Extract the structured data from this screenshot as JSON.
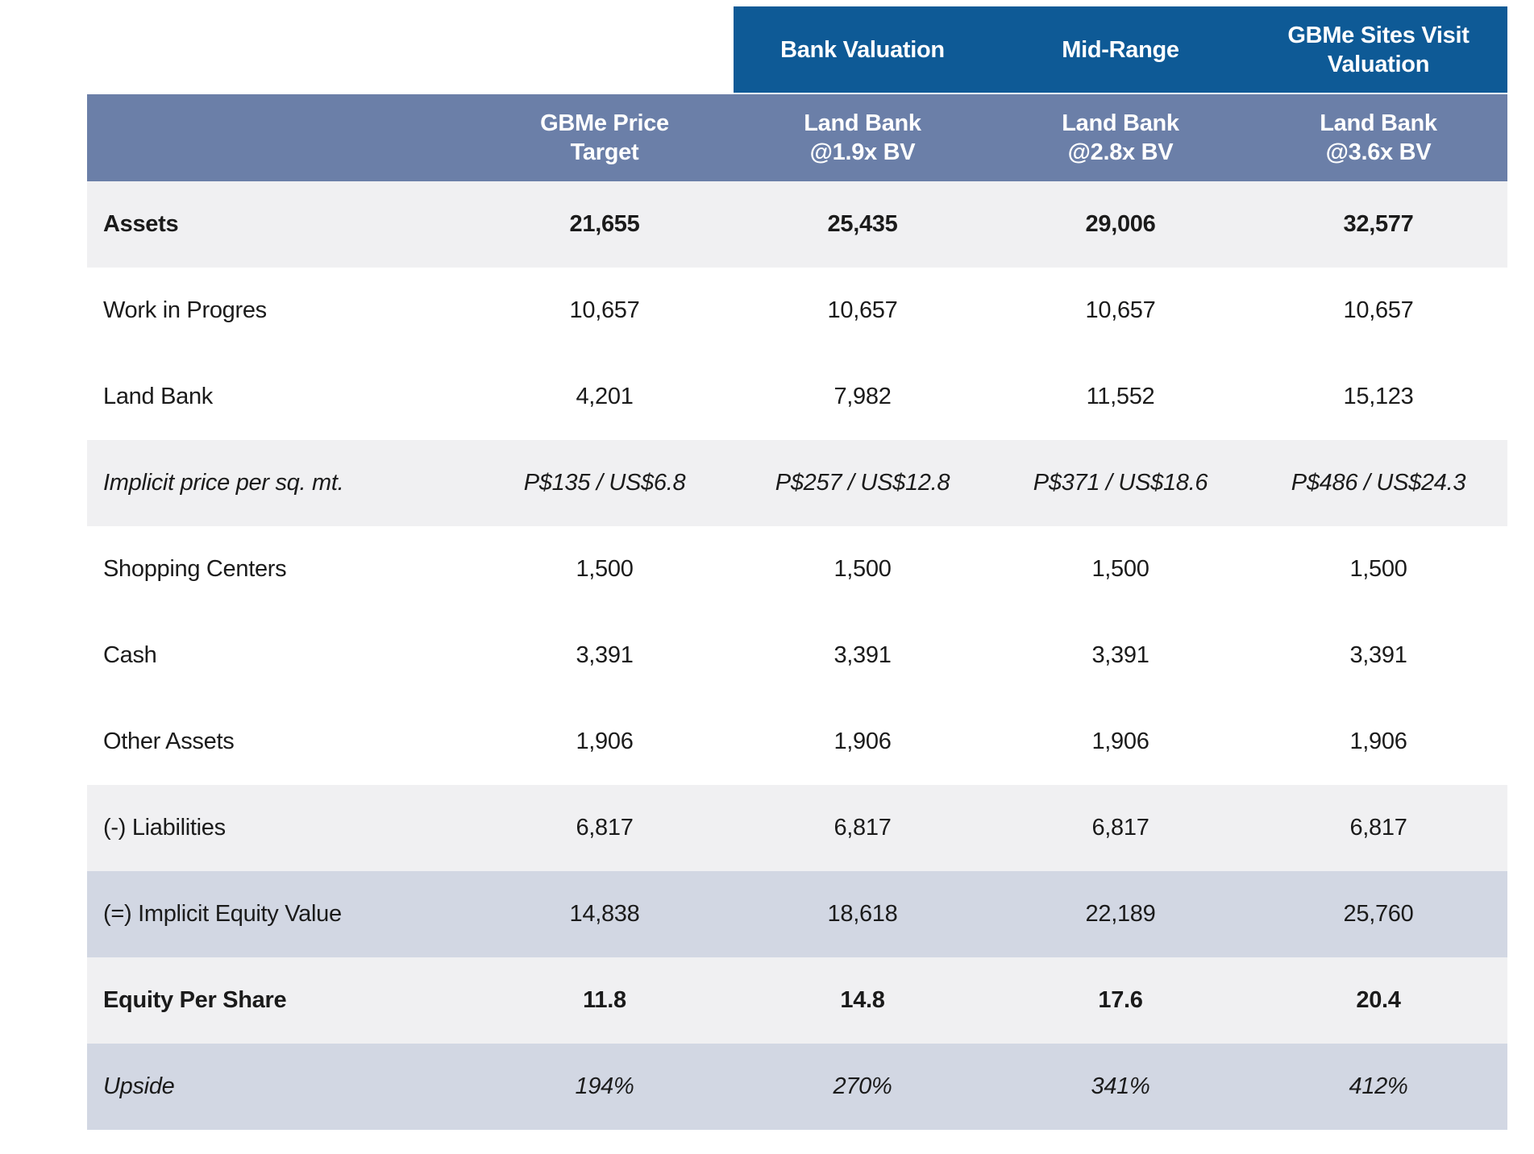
{
  "colors": {
    "header_dark_blue": "#0E5A96",
    "header_slate_blue": "#6B7FA8",
    "row_light_gray": "#F0F0F2",
    "row_blue_gray": "#D2D7E3",
    "header_text": "#FFFFFF",
    "body_text": "#1B1B1B"
  },
  "table": {
    "group_headers": [
      {
        "line1": "Bank Valuation",
        "line2": ""
      },
      {
        "line1": "Mid-Range",
        "line2": ""
      },
      {
        "line1": "GBMe Sites Visit",
        "line2": "Valuation"
      }
    ],
    "column_headers": [
      {
        "line1": "GBMe Price",
        "line2": "Target"
      },
      {
        "line1": "Land Bank",
        "line2": "@1.9x BV"
      },
      {
        "line1": "Land Bank",
        "line2": "@2.8x BV"
      },
      {
        "line1": "Land Bank",
        "line2": "@3.6x BV"
      }
    ],
    "rows": [
      {
        "label": "Assets",
        "values": [
          "21,655",
          "25,435",
          "29,006",
          "32,577"
        ]
      },
      {
        "label": "Work in Progres",
        "values": [
          "10,657",
          "10,657",
          "10,657",
          "10,657"
        ]
      },
      {
        "label": "Land Bank",
        "values": [
          "4,201",
          "7,982",
          "11,552",
          "15,123"
        ]
      },
      {
        "label": "Implicit price per sq. mt.",
        "values": [
          "P$135 / US$6.8",
          "P$257 / US$12.8",
          "P$371 / US$18.6",
          "P$486 / US$24.3"
        ]
      },
      {
        "label": "Shopping Centers",
        "values": [
          "1,500",
          "1,500",
          "1,500",
          "1,500"
        ]
      },
      {
        "label": "Cash",
        "values": [
          "3,391",
          "3,391",
          "3,391",
          "3,391"
        ]
      },
      {
        "label": "Other Assets",
        "values": [
          "1,906",
          "1,906",
          "1,906",
          "1,906"
        ]
      },
      {
        "label": "(-) Liabilities",
        "values": [
          "6,817",
          "6,817",
          "6,817",
          "6,817"
        ]
      },
      {
        "label": "(=) Implicit Equity Value",
        "values": [
          "14,838",
          "18,618",
          "22,189",
          "25,760"
        ]
      },
      {
        "label": "Equity Per Share",
        "values": [
          "11.8",
          "14.8",
          "17.6",
          "20.4"
        ]
      },
      {
        "label": "Upside",
        "values": [
          "194%",
          "270%",
          "341%",
          "412%"
        ]
      }
    ]
  }
}
